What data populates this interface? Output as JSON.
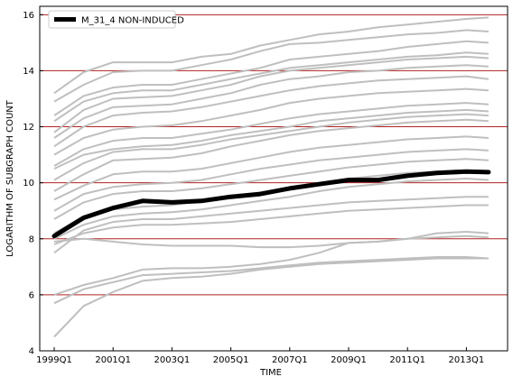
{
  "chart_data": {
    "type": "line",
    "xlabel": "TIME",
    "ylabel": "LOGARITHM OF SUBGRAPH COUNT",
    "x_ticks": [
      "1999Q1",
      "2001Q1",
      "2003Q1",
      "2005Q1",
      "2007Q1",
      "2009Q1",
      "2011Q1",
      "2013Q1"
    ],
    "y_ticks": [
      4,
      6,
      8,
      10,
      12,
      14,
      16
    ],
    "xlim": [
      "1999Q1",
      "2014Q1"
    ],
    "ylim": [
      4,
      16.3
    ],
    "grid": "horizontal",
    "legend_position": "top-left",
    "highlight": {
      "name": "M_31_4 NON-INDUCED",
      "color": "#000000",
      "x": [
        "1999Q1",
        "2000Q1",
        "2001Q1",
        "2002Q1",
        "2003Q1",
        "2004Q1",
        "2005Q1",
        "2006Q1",
        "2007Q1",
        "2008Q1",
        "2009Q1",
        "2010Q1",
        "2011Q1",
        "2012Q1",
        "2013Q1",
        "2013Q4"
      ],
      "values": [
        8.1,
        8.75,
        9.1,
        9.35,
        9.3,
        9.35,
        9.5,
        9.6,
        9.8,
        9.95,
        10.1,
        10.1,
        10.25,
        10.35,
        10.4,
        10.38
      ]
    },
    "background_series_color": "#bfbfbf",
    "background_series": [
      {
        "values": [
          13.2,
          13.95,
          14.3,
          14.3,
          14.3,
          14.5,
          14.6,
          14.9,
          15.1,
          15.3,
          15.4,
          15.55,
          15.65,
          15.75,
          15.85,
          15.9
        ]
      },
      {
        "values": [
          12.9,
          13.5,
          13.95,
          14.0,
          14.0,
          14.2,
          14.4,
          14.7,
          14.95,
          15.0,
          15.1,
          15.2,
          15.3,
          15.35,
          15.45,
          15.4
        ]
      },
      {
        "values": [
          12.4,
          13.1,
          13.4,
          13.5,
          13.5,
          13.7,
          13.9,
          14.1,
          14.4,
          14.5,
          14.6,
          14.7,
          14.85,
          14.95,
          15.05,
          15.0
        ]
      },
      {
        "values": [
          12.2,
          12.9,
          13.2,
          13.3,
          13.3,
          13.5,
          13.7,
          13.9,
          14.1,
          14.2,
          14.3,
          14.4,
          14.5,
          14.55,
          14.65,
          14.6
        ]
      },
      {
        "values": [
          11.8,
          12.6,
          13.0,
          13.05,
          13.1,
          13.3,
          13.5,
          13.8,
          14.0,
          14.1,
          14.2,
          14.3,
          14.4,
          14.45,
          14.5,
          14.45
        ]
      },
      {
        "values": [
          11.6,
          12.3,
          12.7,
          12.75,
          12.8,
          13.0,
          13.2,
          13.5,
          13.7,
          13.8,
          13.95,
          14.0,
          14.1,
          14.15,
          14.2,
          14.15
        ]
      },
      {
        "values": [
          11.3,
          12.0,
          12.4,
          12.5,
          12.55,
          12.7,
          12.9,
          13.1,
          13.3,
          13.45,
          13.55,
          13.65,
          13.7,
          13.75,
          13.8,
          13.7
        ]
      },
      {
        "values": [
          11.0,
          11.6,
          11.9,
          12.0,
          12.05,
          12.2,
          12.4,
          12.6,
          12.85,
          13.0,
          13.1,
          13.2,
          13.25,
          13.3,
          13.35,
          13.3
        ]
      },
      {
        "values": [
          10.6,
          11.2,
          11.5,
          11.6,
          11.6,
          11.75,
          11.9,
          12.1,
          12.3,
          12.45,
          12.55,
          12.65,
          12.75,
          12.8,
          12.85,
          12.8
        ]
      },
      {
        "values": [
          10.5,
          11.0,
          11.2,
          11.3,
          11.35,
          11.5,
          11.7,
          11.85,
          12.0,
          12.2,
          12.3,
          12.4,
          12.5,
          12.55,
          12.6,
          12.55
        ]
      },
      {
        "values": [
          10.1,
          10.7,
          11.1,
          11.2,
          11.2,
          11.35,
          11.55,
          11.7,
          11.85,
          12.0,
          12.15,
          12.25,
          12.35,
          12.4,
          12.45,
          12.4
        ]
      },
      {
        "values": [
          9.7,
          10.3,
          10.8,
          10.85,
          10.9,
          11.05,
          11.3,
          11.5,
          11.7,
          11.85,
          11.95,
          12.05,
          12.15,
          12.2,
          12.25,
          12.2
        ]
      },
      {
        "values": [
          9.4,
          9.9,
          10.3,
          10.4,
          10.4,
          10.5,
          10.7,
          10.9,
          11.1,
          11.25,
          11.35,
          11.45,
          11.55,
          11.6,
          11.65,
          11.6
        ]
      },
      {
        "values": [
          9.0,
          9.6,
          9.85,
          9.95,
          10.0,
          10.1,
          10.3,
          10.5,
          10.65,
          10.8,
          10.9,
          11.0,
          11.1,
          11.15,
          11.2,
          11.15
        ]
      },
      {
        "values": [
          8.7,
          9.3,
          9.6,
          9.7,
          9.7,
          9.8,
          9.95,
          10.1,
          10.25,
          10.4,
          10.55,
          10.65,
          10.75,
          10.8,
          10.85,
          10.8
        ]
      },
      {
        "values": [
          8.2,
          8.8,
          9.05,
          9.15,
          9.2,
          9.35,
          9.5,
          9.65,
          9.8,
          10.0,
          10.15,
          10.25,
          10.35,
          10.4,
          10.45,
          10.4
        ]
      },
      {
        "values": [
          8.0,
          8.5,
          8.8,
          8.9,
          8.95,
          9.05,
          9.2,
          9.35,
          9.5,
          9.7,
          9.85,
          9.95,
          10.05,
          10.1,
          10.15,
          10.1
        ]
      },
      {
        "values": [
          7.5,
          8.3,
          8.6,
          8.7,
          8.7,
          8.8,
          8.9,
          9.0,
          9.1,
          9.2,
          9.3,
          9.35,
          9.4,
          9.45,
          9.5,
          9.5
        ]
      },
      {
        "values": [
          7.8,
          8.2,
          8.4,
          8.5,
          8.5,
          8.55,
          8.6,
          8.7,
          8.8,
          8.9,
          9.0,
          9.05,
          9.1,
          9.15,
          9.2,
          9.2
        ]
      },
      {
        "values": [
          7.9,
          8.0,
          7.9,
          7.8,
          7.75,
          7.75,
          7.75,
          7.7,
          7.7,
          7.75,
          7.85,
          7.9,
          8.0,
          8.05,
          8.1,
          8.05
        ]
      },
      {
        "values": [
          6.0,
          6.35,
          6.6,
          6.9,
          6.95,
          6.95,
          7.0,
          7.1,
          7.25,
          7.5,
          7.85,
          7.9,
          8.0,
          8.2,
          8.25,
          8.2
        ]
      },
      {
        "values": [
          5.7,
          6.2,
          6.45,
          6.7,
          6.75,
          6.8,
          6.85,
          6.95,
          7.05,
          7.15,
          7.2,
          7.25,
          7.3,
          7.35,
          7.35,
          7.3
        ]
      },
      {
        "values": [
          4.5,
          5.6,
          6.1,
          6.5,
          6.6,
          6.65,
          6.75,
          6.9,
          7.0,
          7.1,
          7.15,
          7.2,
          7.25,
          7.3,
          7.3,
          7.3
        ]
      }
    ]
  }
}
